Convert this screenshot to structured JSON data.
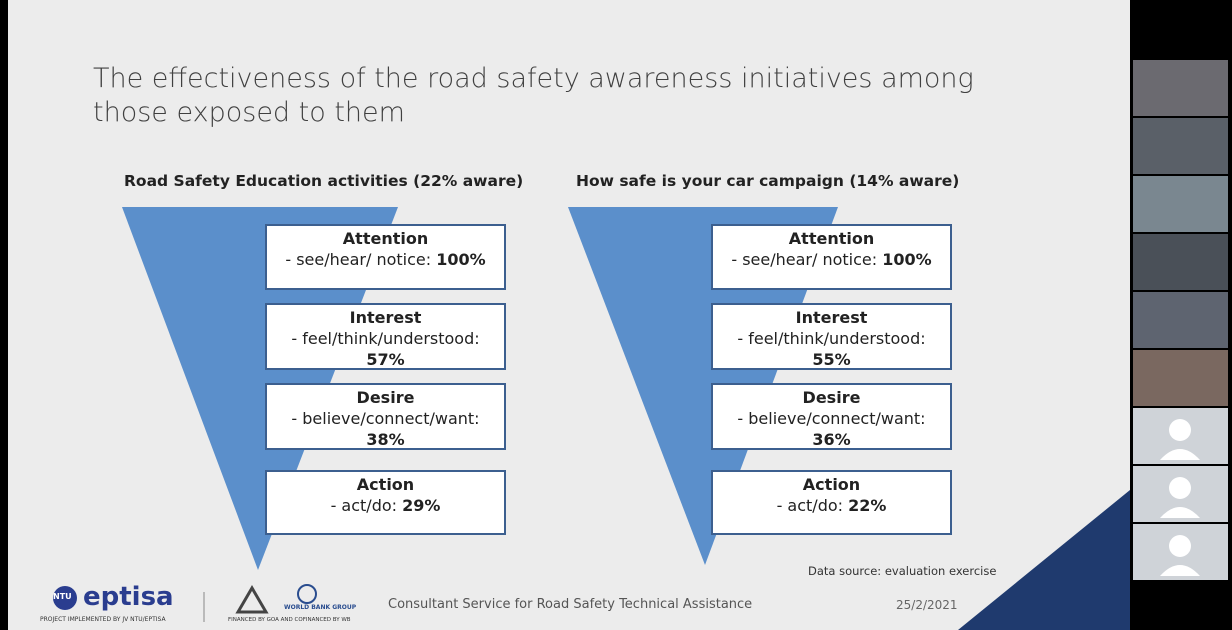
{
  "slide": {
    "title": "The effectiveness of the road safety awareness initiatives among those exposed to them",
    "funnels": [
      {
        "heading": "Road Safety Education activities (22% aware)",
        "stages": [
          {
            "name": "Attention",
            "description": "- see/hear/ notice:",
            "value": "100%"
          },
          {
            "name": "Interest",
            "description": "- feel/think/understood:",
            "value": "57%"
          },
          {
            "name": "Desire",
            "description": "- believe/connect/want:",
            "value": "38%"
          },
          {
            "name": "Action",
            "description": "- act/do:",
            "value": "29%"
          }
        ]
      },
      {
        "heading": "How safe is your car campaign (14% aware)",
        "stages": [
          {
            "name": "Attention",
            "description": "- see/hear/ notice:",
            "value": "100%"
          },
          {
            "name": "Interest",
            "description": "- feel/think/understood:",
            "value": "55%"
          },
          {
            "name": "Desire",
            "description": "- believe/connect/want:",
            "value": "36%"
          },
          {
            "name": "Action",
            "description": "- act/do:",
            "value": "22%"
          }
        ]
      }
    ],
    "source": "Data source: evaluation exercise",
    "footer": {
      "ntu": "NTU",
      "logo": "eptisa",
      "implemented": "PROJECT IMPLEMENTED BY JV NTU/EPTISA",
      "wb": "WORLD BANK GROUP",
      "financed": "FINANCED BY GOA AND COFINANCED BY WB",
      "service": "Consultant Service for Road Safety Technical Assistance",
      "date": "25/2/2021"
    }
  }
}
